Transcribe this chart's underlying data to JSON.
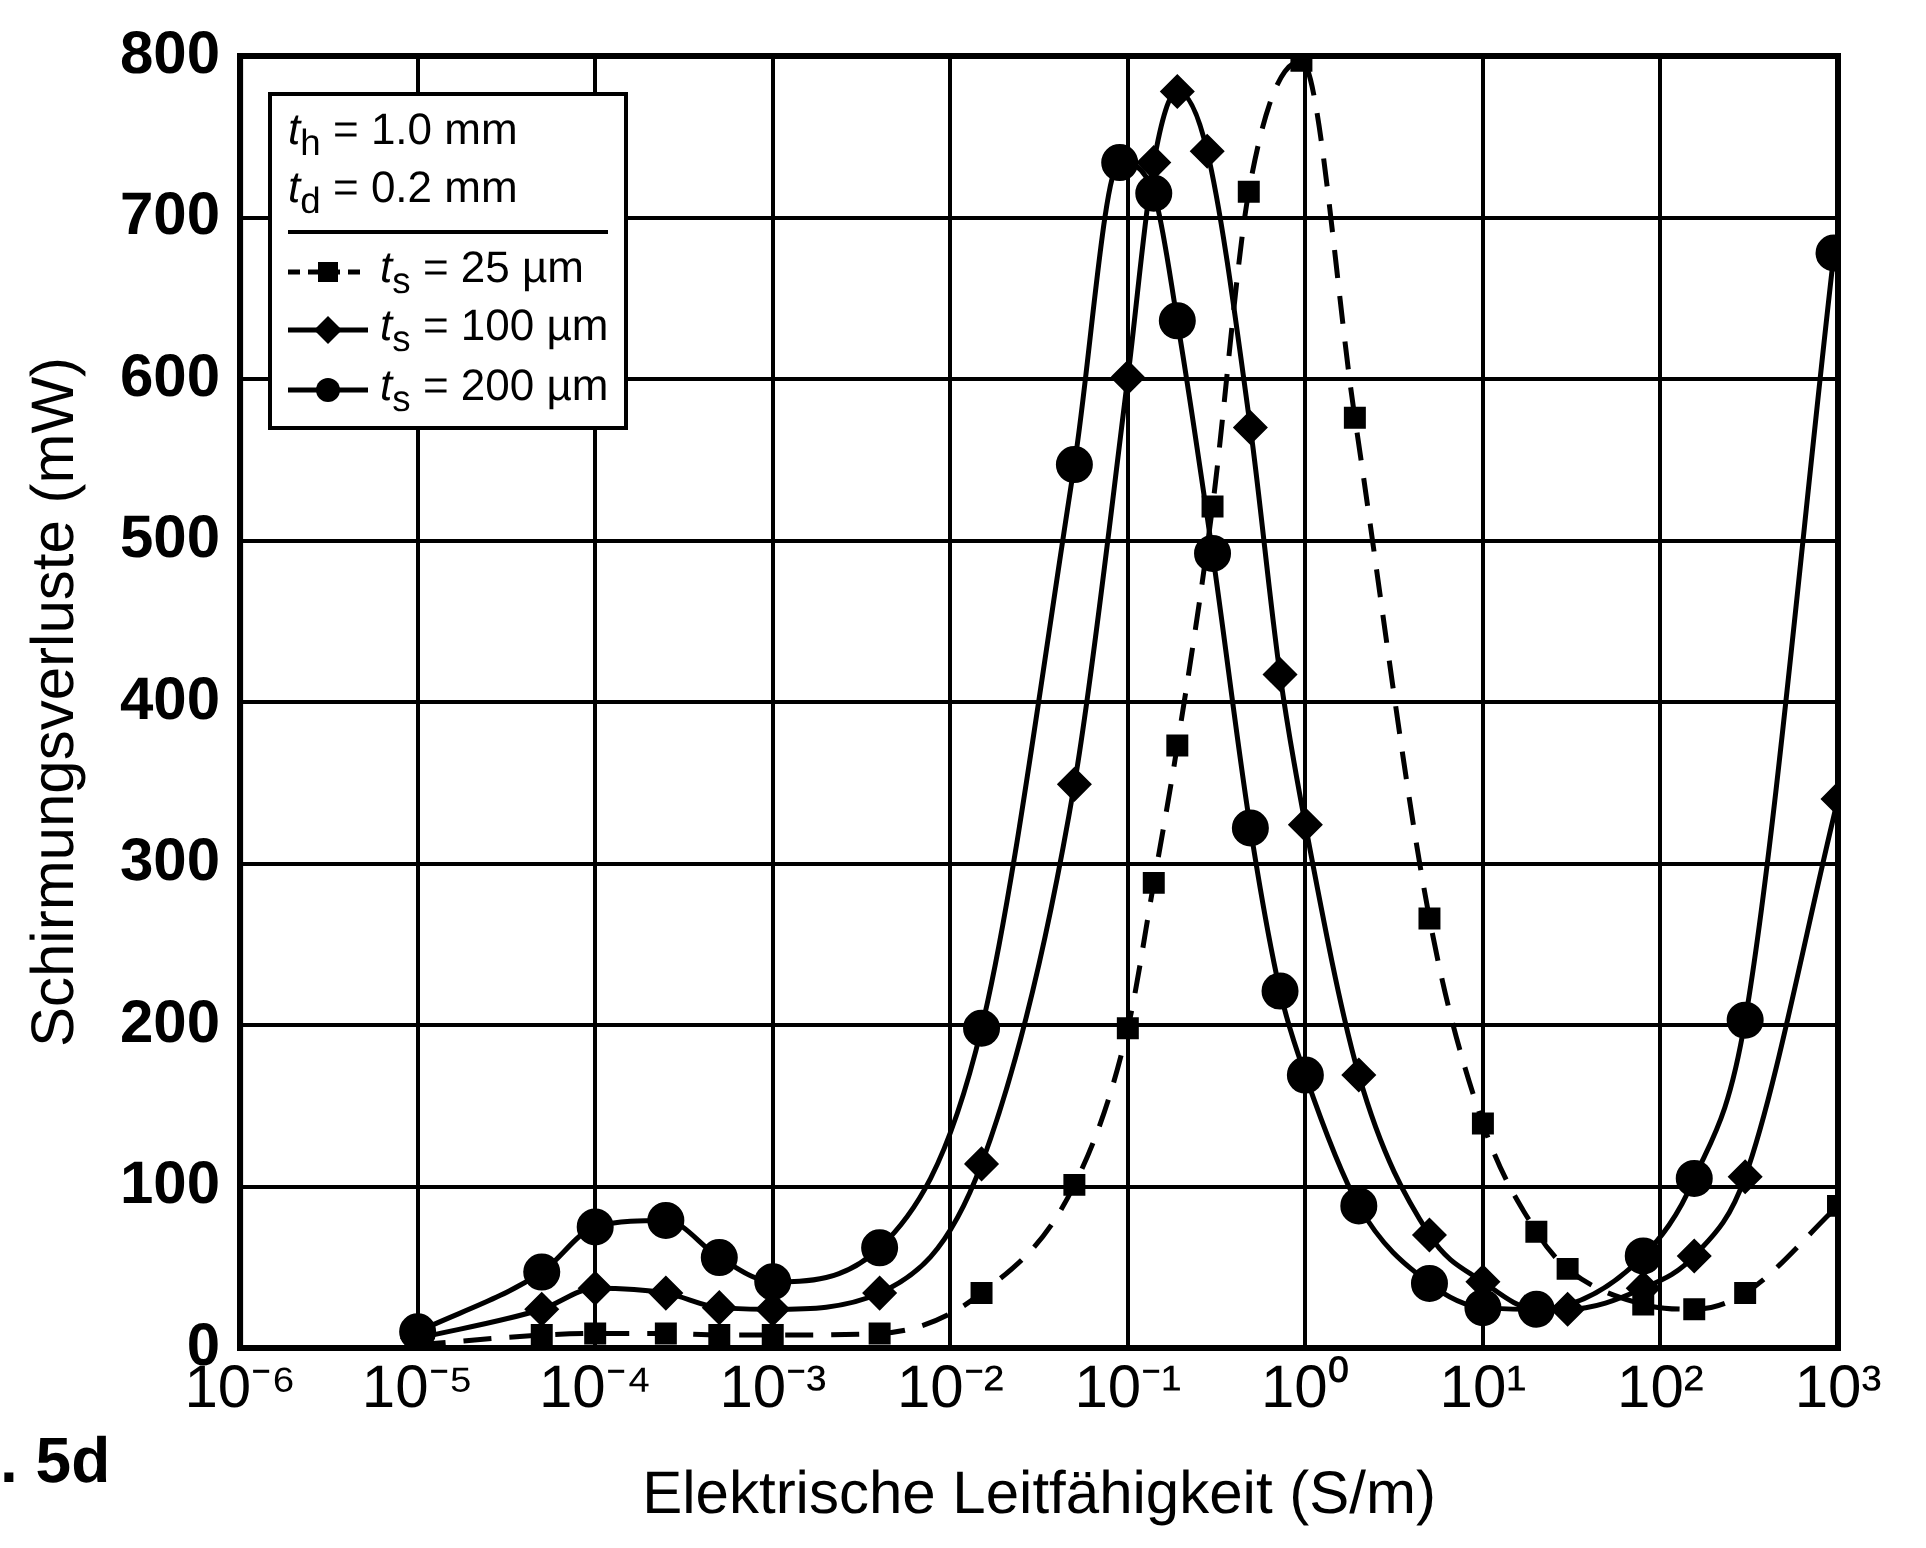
{
  "chart_data": {
    "type": "line",
    "xlabel": "Elektrische Leitfähigkeit (S/m)",
    "ylabel": "Schirmungsverluste (mW)",
    "legend_title": "t$_{h}$ = 1.0 mm\nt$_{d}$ = 0.2 mm",
    "log": "x",
    "grid": true,
    "legend": "top left",
    "xlim": [
      1e-06,
      1000
    ],
    "xticks": [
      {
        "value": 1e-06,
        "label": "10⁻⁶"
      },
      {
        "value": 1e-05,
        "label": "10⁻⁵"
      },
      {
        "value": 0.0001,
        "label": "10⁻⁴"
      },
      {
        "value": 0.001,
        "label": "10⁻³"
      },
      {
        "value": 0.01,
        "label": "10⁻²"
      },
      {
        "value": 0.1,
        "label": "10⁻¹"
      },
      {
        "value": 1,
        "label": "10⁰"
      },
      {
        "value": 10,
        "label": "10¹"
      },
      {
        "value": 100,
        "label": "10²"
      },
      {
        "value": 1000,
        "label": "10³"
      }
    ],
    "ylim": [
      0,
      800
    ],
    "yticks": [
      0,
      100,
      200,
      300,
      400,
      500,
      600,
      700,
      800
    ],
    "annotations": [
      ". 5d"
    ],
    "series": [
      {
        "name": "t$_{s}$ = 25 µm",
        "color": "#000000",
        "marker": "square",
        "line_style": "dashed",
        "x": [
          1e-05,
          5e-05,
          0.0001,
          0.00025,
          0.0005,
          0.001,
          0.004,
          0.015,
          0.05,
          0.1,
          0.14,
          0.19,
          0.3,
          0.48,
          0.95,
          1.9,
          5,
          10,
          20,
          30,
          80,
          155,
          300,
          1000
        ],
        "values": [
          2,
          8,
          9,
          9,
          8,
          8,
          9,
          34,
          101,
          198,
          288,
          373,
          521,
          716,
          797,
          576,
          266,
          139,
          72,
          49,
          27,
          24,
          34,
          88
        ]
      },
      {
        "name": "t$_{s}$ = 100 µm",
        "color": "#000000",
        "marker": "diamond",
        "line_style": "solid",
        "x": [
          1e-05,
          5e-05,
          0.0001,
          0.00025,
          0.0005,
          0.001,
          0.004,
          0.015,
          0.05,
          0.1,
          0.14,
          0.19,
          0.28,
          0.49,
          0.72,
          1,
          2,
          5,
          10,
          20,
          30,
          80,
          155,
          300,
          1000
        ],
        "values": [
          6,
          24,
          37,
          34,
          25,
          24,
          34,
          114,
          349,
          601,
          734,
          778,
          741,
          570,
          417,
          324,
          169,
          70,
          41,
          24,
          24,
          37,
          57,
          106,
          340
        ]
      },
      {
        "name": "t$_{s}$ = 200 µm",
        "color": "#000000",
        "marker": "circle",
        "line_style": "solid",
        "x": [
          1e-05,
          5e-05,
          0.0001,
          0.00025,
          0.0005,
          0.001,
          0.004,
          0.015,
          0.05,
          0.09,
          0.14,
          0.19,
          0.3,
          0.49,
          0.72,
          1,
          2,
          5,
          10,
          20,
          80,
          155,
          300,
          950
        ],
        "values": [
          10,
          47,
          75,
          79,
          56,
          41,
          62,
          198,
          547,
          734,
          715,
          636,
          492,
          322,
          221,
          169,
          88,
          40,
          25,
          24,
          57,
          105,
          203,
          678
        ]
      }
    ]
  }
}
